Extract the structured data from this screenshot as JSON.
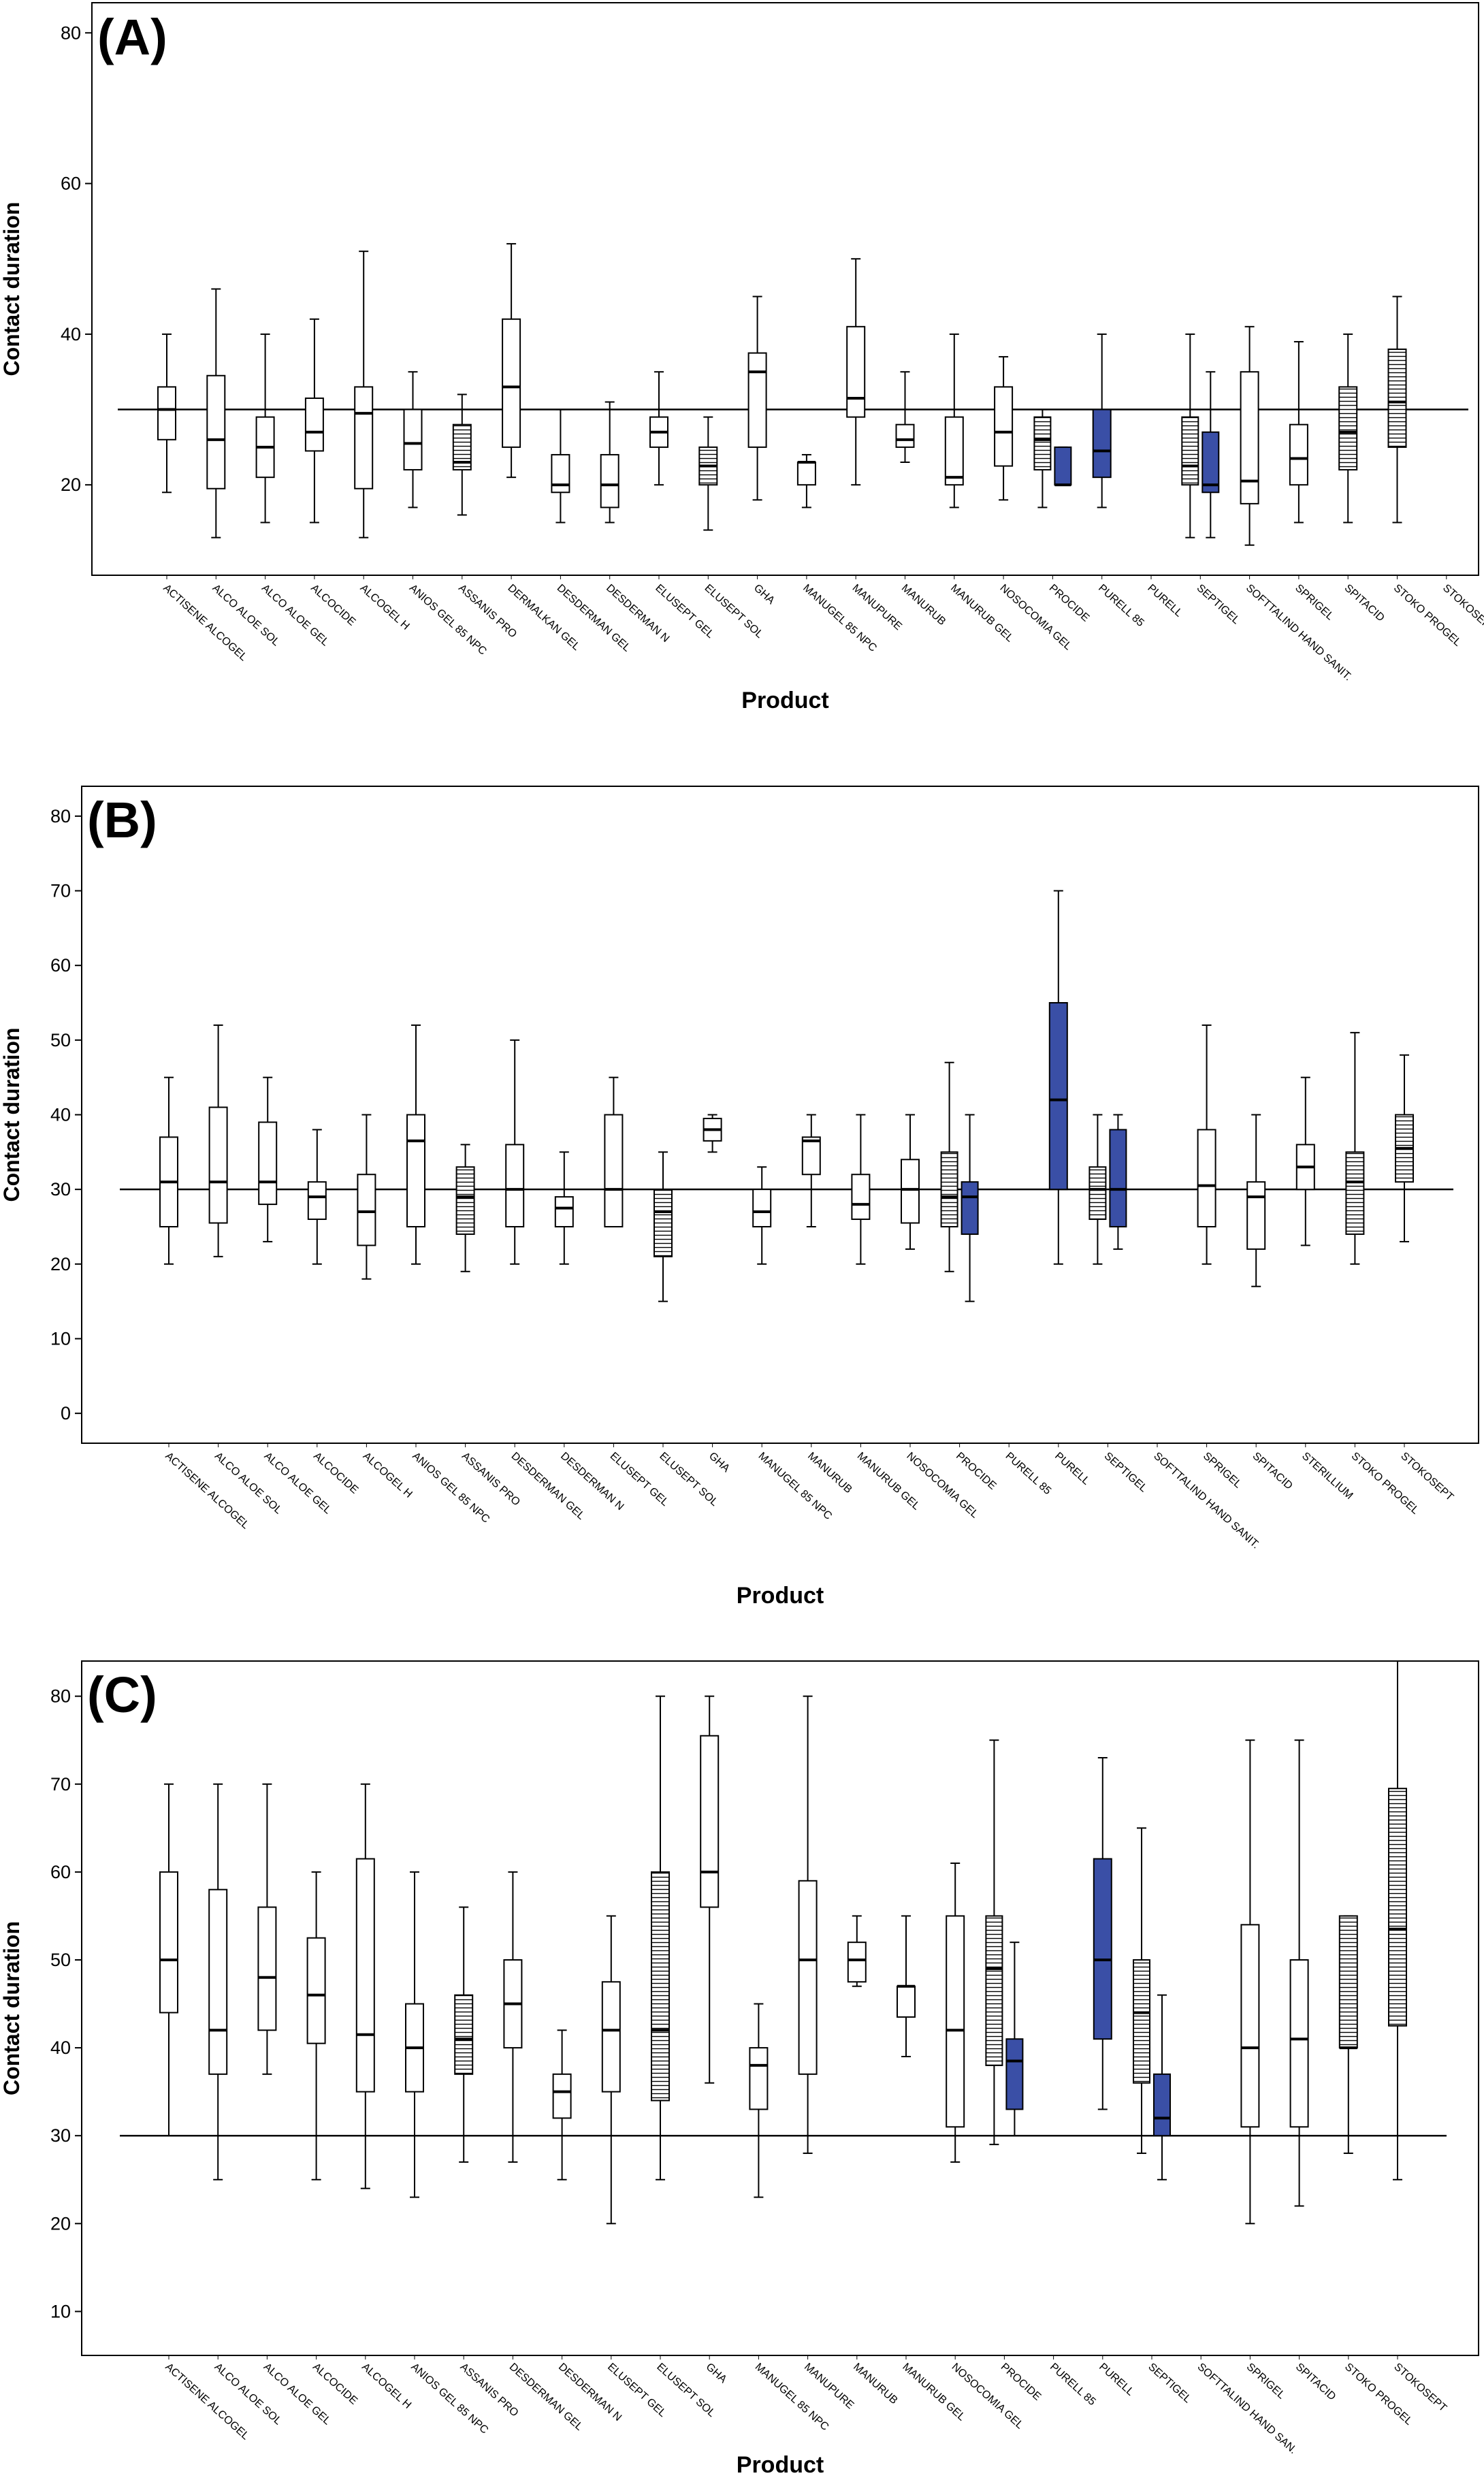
{
  "chart_data": [
    {
      "type": "boxplot",
      "panel_label": "(A)",
      "xlabel": "Product",
      "ylabel": "Contact duration",
      "ylim": [
        8,
        84
      ],
      "yticks": [
        20,
        40,
        60,
        80
      ],
      "reference_line": 30,
      "grid": false,
      "categories": [
        "ACTISENE ALCOGEL",
        "ALCO ALOE SOL",
        "ALCO ALOE GEL",
        "ALCOCIDE",
        "ALCOGEL H",
        "ANIOS GEL 85 NPC",
        "ASSANIS PRO",
        "DERMALKAN GEL",
        "DESDERMAN GEL",
        "DESDERMAN N",
        "ELUSEPT GEL",
        "ELUSEPT SOL",
        "GHA",
        "MANUGEL 85 NPC",
        "MANUPURE",
        "MANURUB",
        "MANURUB GEL",
        "NOSOCOMIA GEL",
        "PROCIDE",
        "PURELL 85",
        "PURELL",
        "SEPTIGEL",
        "SOFTTALIND HAND SANIT.",
        "SPRIGEL",
        "SPITACID",
        "STOKO PROGEL",
        "STOKOSEPT"
      ],
      "boxes": [
        {
          "cat": 0,
          "min": 19,
          "q1": 26,
          "median": 30,
          "q3": 33,
          "max": 40,
          "style": "plain"
        },
        {
          "cat": 1,
          "min": 13,
          "q1": 19.5,
          "median": 26,
          "q3": 34.5,
          "max": 46,
          "style": "plain"
        },
        {
          "cat": 2,
          "min": 15,
          "q1": 21,
          "median": 25,
          "q3": 29,
          "max": 40,
          "style": "plain"
        },
        {
          "cat": 3,
          "min": 15,
          "q1": 24.5,
          "median": 27,
          "q3": 31.5,
          "max": 42,
          "style": "plain"
        },
        {
          "cat": 4,
          "min": 13,
          "q1": 19.5,
          "median": 29.5,
          "q3": 33,
          "max": 51,
          "style": "plain"
        },
        {
          "cat": 5,
          "min": 17,
          "q1": 22,
          "median": 25.5,
          "q3": 30,
          "max": 35,
          "style": "plain"
        },
        {
          "cat": 6,
          "min": 16,
          "q1": 22,
          "median": 23,
          "q3": 28,
          "max": 32,
          "style": "striped"
        },
        {
          "cat": 7,
          "min": 21,
          "q1": 25,
          "median": 33,
          "q3": 42,
          "max": 52,
          "style": "plain"
        },
        {
          "cat": 8,
          "min": 15,
          "q1": 19,
          "median": 20,
          "q3": 24,
          "max": 30,
          "style": "plain"
        },
        {
          "cat": 9,
          "min": 15,
          "q1": 17,
          "median": 20,
          "q3": 24,
          "max": 31,
          "style": "plain"
        },
        {
          "cat": 10,
          "min": 20,
          "q1": 25,
          "median": 27,
          "q3": 29,
          "max": 35,
          "style": "plain"
        },
        {
          "cat": 11,
          "min": 14,
          "q1": 20,
          "median": 22.5,
          "q3": 25,
          "max": 29,
          "style": "striped"
        },
        {
          "cat": 12,
          "min": 18,
          "q1": 25,
          "median": 35,
          "q3": 37.5,
          "max": 45,
          "style": "plain"
        },
        {
          "cat": 13,
          "min": 17,
          "q1": 20,
          "median": 23,
          "q3": 23,
          "max": 24,
          "style": "plain"
        },
        {
          "cat": 14,
          "min": 20,
          "q1": 29,
          "median": 31.5,
          "q3": 41,
          "max": 50,
          "style": "plain"
        },
        {
          "cat": 15,
          "min": 23,
          "q1": 25,
          "median": 26,
          "q3": 28,
          "max": 35,
          "style": "plain"
        },
        {
          "cat": 16,
          "min": 17,
          "q1": 20,
          "median": 21,
          "q3": 29,
          "max": 40,
          "style": "plain"
        },
        {
          "cat": 17,
          "min": 18,
          "q1": 22.5,
          "median": 27,
          "q3": 33,
          "max": 37,
          "style": "plain"
        },
        {
          "cat": 18,
          "min": 17,
          "q1": 22,
          "median": 26,
          "q3": 29,
          "max": 30,
          "style": "striped",
          "offset": -1
        },
        {
          "cat": 18,
          "min": 20,
          "q1": 20,
          "median": 20,
          "q3": 25,
          "max": 25,
          "style": "filled",
          "offset": 1
        },
        {
          "cat": 19,
          "min": 17,
          "q1": 21,
          "median": 24.5,
          "q3": 30,
          "max": 40,
          "style": "filled"
        },
        {
          "cat": 21,
          "min": 13,
          "q1": 20,
          "median": 22.5,
          "q3": 29,
          "max": 40,
          "style": "striped",
          "offset": -1
        },
        {
          "cat": 21,
          "min": 13,
          "q1": 19,
          "median": 20,
          "q3": 27,
          "max": 35,
          "style": "filled",
          "offset": 1
        },
        {
          "cat": 22,
          "min": 12,
          "q1": 17.5,
          "median": 20.5,
          "q3": 35,
          "max": 41,
          "style": "plain"
        },
        {
          "cat": 23,
          "min": 15,
          "q1": 20,
          "median": 23.5,
          "q3": 28,
          "max": 39,
          "style": "plain"
        },
        {
          "cat": 24,
          "min": 15,
          "q1": 22,
          "median": 27,
          "q3": 33,
          "max": 40,
          "style": "striped"
        },
        {
          "cat": 25,
          "min": 15,
          "q1": 25,
          "median": 31,
          "q3": 38,
          "max": 45,
          "style": "striped"
        }
      ]
    },
    {
      "type": "boxplot",
      "panel_label": "(B)",
      "xlabel": "Product",
      "ylabel": "Contact duration",
      "ylim": [
        -4,
        84
      ],
      "yticks": [
        0,
        10,
        20,
        30,
        40,
        50,
        60,
        70,
        80
      ],
      "reference_line": 30,
      "grid": false,
      "categories": [
        "ACTISENE ALCOGEL",
        "ALCO ALOE SOL",
        "ALCO ALOE GEL",
        "ALCOCIDE",
        "ALCOGEL H",
        "ANIOS GEL 85 NPC",
        "ASSANIS PRO",
        "DESDERMAN GEL",
        "DESDERMAN N",
        "ELUSEPT GEL",
        "ELUSEPT SOL",
        "GHA",
        "MANUGEL 85 NPC",
        "MANURUB",
        "MANURUB GEL",
        "NOSOCOMIA GEL",
        "PROCIDE",
        "PURELL 85",
        "PURELL",
        "SEPTIGEL",
        "SOFTTALIND HAND SANIT.",
        "SPRIGEL",
        "SPITACID",
        "STERILLIUM",
        "STOKO PROGEL",
        "STOKOSEPT"
      ],
      "boxes": [
        {
          "cat": 0,
          "min": 20,
          "q1": 25,
          "median": 31,
          "q3": 37,
          "max": 45,
          "style": "plain"
        },
        {
          "cat": 1,
          "min": 21,
          "q1": 25.5,
          "median": 31,
          "q3": 41,
          "max": 52,
          "style": "plain"
        },
        {
          "cat": 2,
          "min": 23,
          "q1": 28,
          "median": 31,
          "q3": 39,
          "max": 45,
          "style": "plain"
        },
        {
          "cat": 3,
          "min": 20,
          "q1": 26,
          "median": 29,
          "q3": 31,
          "max": 38,
          "style": "plain"
        },
        {
          "cat": 4,
          "min": 18,
          "q1": 22.5,
          "median": 27,
          "q3": 32,
          "max": 40,
          "style": "plain"
        },
        {
          "cat": 5,
          "min": 20,
          "q1": 25,
          "median": 36.5,
          "q3": 40,
          "max": 52,
          "style": "plain"
        },
        {
          "cat": 6,
          "min": 19,
          "q1": 24,
          "median": 29,
          "q3": 33,
          "max": 36,
          "style": "striped"
        },
        {
          "cat": 7,
          "min": 20,
          "q1": 25,
          "median": 30,
          "q3": 36,
          "max": 50,
          "style": "plain"
        },
        {
          "cat": 8,
          "min": 20,
          "q1": 25,
          "median": 27.5,
          "q3": 29,
          "max": 35,
          "style": "plain"
        },
        {
          "cat": 9,
          "min": 25,
          "q1": 25,
          "median": 30,
          "q3": 40,
          "max": 45,
          "style": "plain"
        },
        {
          "cat": 10,
          "min": 15,
          "q1": 21,
          "median": 27,
          "q3": 30,
          "max": 35,
          "style": "striped"
        },
        {
          "cat": 11,
          "min": 35,
          "q1": 36.5,
          "median": 38,
          "q3": 39.5,
          "max": 40,
          "style": "plain"
        },
        {
          "cat": 12,
          "min": 20,
          "q1": 25,
          "median": 27,
          "q3": 30,
          "max": 33,
          "style": "plain"
        },
        {
          "cat": 13,
          "min": 25,
          "q1": 32,
          "median": 36.5,
          "q3": 37,
          "max": 40,
          "style": "plain"
        },
        {
          "cat": 14,
          "min": 20,
          "q1": 26,
          "median": 28,
          "q3": 32,
          "max": 40,
          "style": "plain"
        },
        {
          "cat": 15,
          "min": 22,
          "q1": 25.5,
          "median": 30,
          "q3": 34,
          "max": 40,
          "style": "plain"
        },
        {
          "cat": 16,
          "min": 19,
          "q1": 25,
          "median": 29,
          "q3": 35,
          "max": 47,
          "style": "striped",
          "offset": -1
        },
        {
          "cat": 16,
          "min": 15,
          "q1": 24,
          "median": 29,
          "q3": 31,
          "max": 40,
          "style": "filled",
          "offset": 1
        },
        {
          "cat": 18,
          "min": 20,
          "q1": 30,
          "median": 42,
          "q3": 55,
          "max": 70,
          "style": "filled"
        },
        {
          "cat": 19,
          "min": 20,
          "q1": 26,
          "median": 30,
          "q3": 33,
          "max": 40,
          "style": "striped",
          "offset": -1
        },
        {
          "cat": 19,
          "min": 22,
          "q1": 25,
          "median": 30,
          "q3": 38,
          "max": 40,
          "style": "filled",
          "offset": 1
        },
        {
          "cat": 21,
          "min": 20,
          "q1": 25,
          "median": 30.5,
          "q3": 38,
          "max": 52,
          "style": "plain"
        },
        {
          "cat": 22,
          "min": 17,
          "q1": 22,
          "median": 29,
          "q3": 31,
          "max": 40,
          "style": "plain"
        },
        {
          "cat": 23,
          "min": 22.5,
          "q1": 30,
          "median": 33,
          "q3": 36,
          "max": 45,
          "style": "plain"
        },
        {
          "cat": 24,
          "min": 20,
          "q1": 24,
          "median": 31,
          "q3": 35,
          "max": 51,
          "style": "striped"
        },
        {
          "cat": 25,
          "min": 23,
          "q1": 31,
          "median": 35.5,
          "q3": 40,
          "max": 48,
          "style": "striped"
        }
      ]
    },
    {
      "type": "boxplot",
      "panel_label": "(C)",
      "xlabel": "Product",
      "ylabel": "Contact duration",
      "ylim": [
        5,
        84
      ],
      "yticks": [
        10,
        20,
        30,
        40,
        50,
        60,
        70,
        80
      ],
      "reference_line": 30,
      "grid": false,
      "categories": [
        "ACTISENE ALCOGEL",
        "ALCO ALOE SOL",
        "ALCO ALOE GEL",
        "ALCOCIDE",
        "ALCOGEL H",
        "ANIOS GEL 85 NPC",
        "ASSANIS PRO",
        "DESDERMAN GEL",
        "DESDERMAN N",
        "ELUSEPT GEL",
        "ELUSEPT SOL",
        "GHA",
        "MANUGEL 85 NPC",
        "MANUPURE",
        "MANURUB",
        "MANURUB GEL",
        "NOSOCOMIA GEL",
        "PROCIDE",
        "PURELL 85",
        "PURELL",
        "SEPTIGEL",
        "SOFTTALIND HAND SAN.",
        "SPRIGEL",
        "SPITACID",
        "STOKO PROGEL",
        "STOKOSEPT"
      ],
      "boxes": [
        {
          "cat": 0,
          "min": 30,
          "q1": 44,
          "median": 50,
          "q3": 60,
          "max": 70,
          "style": "plain"
        },
        {
          "cat": 1,
          "min": 25,
          "q1": 37,
          "median": 42,
          "q3": 58,
          "max": 70,
          "style": "plain"
        },
        {
          "cat": 2,
          "min": 37,
          "q1": 42,
          "median": 48,
          "q3": 56,
          "max": 70,
          "style": "plain"
        },
        {
          "cat": 3,
          "min": 25,
          "q1": 40.5,
          "median": 46,
          "q3": 52.5,
          "max": 60,
          "style": "plain"
        },
        {
          "cat": 4,
          "min": 24,
          "q1": 35,
          "median": 41.5,
          "q3": 61.5,
          "max": 70,
          "style": "plain"
        },
        {
          "cat": 5,
          "min": 23,
          "q1": 35,
          "median": 40,
          "q3": 45,
          "max": 60,
          "style": "plain"
        },
        {
          "cat": 6,
          "min": 27,
          "q1": 37,
          "median": 41,
          "q3": 46,
          "max": 56,
          "style": "striped"
        },
        {
          "cat": 7,
          "min": 27,
          "q1": 40,
          "median": 45,
          "q3": 50,
          "max": 60,
          "style": "plain"
        },
        {
          "cat": 8,
          "min": 25,
          "q1": 32,
          "median": 35,
          "q3": 37,
          "max": 42,
          "style": "plain"
        },
        {
          "cat": 9,
          "min": 20,
          "q1": 35,
          "median": 42,
          "q3": 47.5,
          "max": 55,
          "style": "plain"
        },
        {
          "cat": 10,
          "min": 25,
          "q1": 34,
          "median": 42,
          "q3": 60,
          "max": 80,
          "style": "striped"
        },
        {
          "cat": 11,
          "min": 36,
          "q1": 56,
          "median": 60,
          "q3": 75.5,
          "max": 80,
          "style": "plain"
        },
        {
          "cat": 12,
          "min": 23,
          "q1": 33,
          "median": 38,
          "q3": 40,
          "max": 45,
          "style": "plain"
        },
        {
          "cat": 13,
          "min": 28,
          "q1": 37,
          "median": 50,
          "q3": 59,
          "max": 80,
          "style": "plain"
        },
        {
          "cat": 14,
          "min": 47,
          "q1": 47.5,
          "median": 50,
          "q3": 52,
          "max": 55,
          "style": "plain"
        },
        {
          "cat": 15,
          "min": 39,
          "q1": 43.5,
          "median": 47,
          "q3": 47,
          "max": 55,
          "style": "plain"
        },
        {
          "cat": 16,
          "min": 27,
          "q1": 31,
          "median": 42,
          "q3": 55,
          "max": 61,
          "style": "plain"
        },
        {
          "cat": 17,
          "min": 29,
          "q1": 38,
          "median": 49,
          "q3": 55,
          "max": 75,
          "style": "striped",
          "offset": -1
        },
        {
          "cat": 17,
          "min": 30,
          "q1": 33,
          "median": 38.5,
          "q3": 41,
          "max": 52,
          "style": "filled",
          "offset": 1
        },
        {
          "cat": 19,
          "min": 33,
          "q1": 41,
          "median": 50,
          "q3": 61.5,
          "max": 73,
          "style": "filled"
        },
        {
          "cat": 20,
          "min": 28,
          "q1": 36,
          "median": 44,
          "q3": 50,
          "max": 65,
          "style": "striped",
          "offset": -1
        },
        {
          "cat": 20,
          "min": 25,
          "q1": 30,
          "median": 32,
          "q3": 37,
          "max": 46,
          "style": "filled",
          "offset": 1
        },
        {
          "cat": 22,
          "min": 20,
          "q1": 31,
          "median": 40,
          "q3": 54,
          "max": 75,
          "style": "plain"
        },
        {
          "cat": 23,
          "min": 22,
          "q1": 31,
          "median": 41,
          "q3": 50,
          "max": 75,
          "style": "plain"
        },
        {
          "cat": 24,
          "min": 28,
          "q1": 40,
          "median": 40,
          "q3": 55,
          "max": 55,
          "style": "striped"
        },
        {
          "cat": 25,
          "min": 25,
          "q1": 42.5,
          "median": 53.5,
          "q3": 69.5,
          "max": 84,
          "style": "striped"
        }
      ]
    }
  ],
  "colors": {
    "fill_blue": "#3a4fa6",
    "line": "#000000",
    "background": "#ffffff"
  }
}
